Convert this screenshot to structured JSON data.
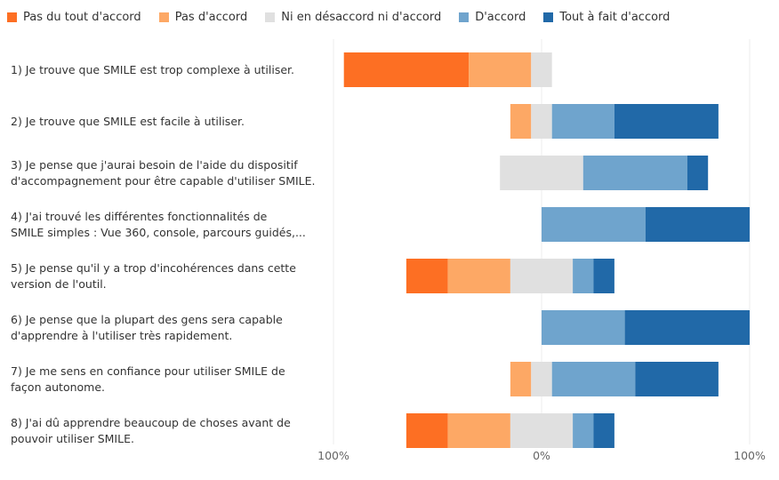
{
  "chart_data": {
    "type": "bar",
    "orientation": "horizontal",
    "stacked": "diverging",
    "legend": "top-left",
    "grid": true,
    "xlim": [
      -100,
      100
    ],
    "ticks": [
      {
        "value": -100,
        "label": "100%"
      },
      {
        "value": 0,
        "label": "0%"
      },
      {
        "value": 100,
        "label": "100%"
      }
    ],
    "series": [
      {
        "name": "Pas du tout d'accord",
        "color": "#fd6f23"
      },
      {
        "name": "Pas d'accord",
        "color": "#fda865"
      },
      {
        "name": "Ni en désaccord ni d'accord",
        "color": "#e0e0e0"
      },
      {
        "name": "D'accord",
        "color": "#6fa4cd"
      },
      {
        "name": "Tout à fait d'accord",
        "color": "#2169a8"
      }
    ],
    "categories": [
      {
        "lines": [
          "1) Je trouve que SMILE est trop complexe à utiliser."
        ],
        "values": [
          60,
          30,
          10,
          0,
          0
        ]
      },
      {
        "lines": [
          "2) Je trouve que SMILE est facile à utiliser."
        ],
        "values": [
          0,
          10,
          10,
          30,
          50
        ]
      },
      {
        "lines": [
          "3) Je pense que j'aurai besoin de l'aide du dispositif",
          "d'accompagnement pour être capable d'utiliser SMILE."
        ],
        "values": [
          0,
          0,
          40,
          50,
          10
        ]
      },
      {
        "lines": [
          "4) J'ai trouvé les différentes fonctionnalités de",
          "SMILE simples : Vue 360, console, parcours guidés,..."
        ],
        "values": [
          0,
          0,
          0,
          50,
          50
        ]
      },
      {
        "lines": [
          "5) Je pense qu'il y a trop d'incohérences dans cette",
          "version de l'outil."
        ],
        "values": [
          20,
          30,
          30,
          10,
          10
        ]
      },
      {
        "lines": [
          "6) Je pense que la plupart des gens sera capable",
          "d'apprendre à l'utiliser très rapidement."
        ],
        "values": [
          0,
          0,
          0,
          40,
          60
        ]
      },
      {
        "lines": [
          "7) Je me sens en confiance pour utiliser SMILE de",
          "façon autonome."
        ],
        "values": [
          0,
          10,
          10,
          40,
          40
        ]
      },
      {
        "lines": [
          "8) J'ai dû apprendre beaucoup de choses avant de",
          "pouvoir utiliser SMILE."
        ],
        "values": [
          20,
          30,
          30,
          10,
          10
        ]
      }
    ]
  }
}
